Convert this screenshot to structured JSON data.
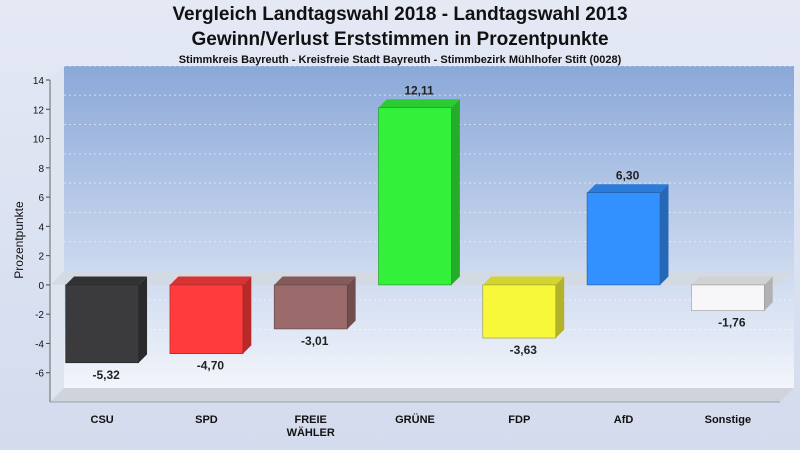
{
  "chart_data": {
    "type": "bar",
    "title": "Vergleich Landtagswahl 2018 - Landtagswahl 2013",
    "subtitle": "Gewinn/Verlust Erststimmen in Prozentpunkte",
    "caption": "Stimmkreis Bayreuth - Kreisfreie Stadt Bayreuth - Stimmbezirk Mühlhofer Stift (0028)",
    "ylabel": "Prozentpunkte",
    "ylim": [
      -8,
      14
    ],
    "yticks": [
      -6,
      -4,
      -2,
      0,
      2,
      4,
      6,
      8,
      10,
      12,
      14
    ],
    "grid": true,
    "categories": [
      "CSU",
      "SPD",
      "FREIE WÄHLER",
      "GRÜNE",
      "FDP",
      "AfD",
      "Sonstige"
    ],
    "category_lines": [
      [
        "CSU"
      ],
      [
        "SPD"
      ],
      [
        "FREIE",
        "WÄHLER"
      ],
      [
        "GRÜNE"
      ],
      [
        "FDP"
      ],
      [
        "AfD"
      ],
      [
        "Sonstige"
      ]
    ],
    "values": [
      -5.32,
      -4.7,
      -3.01,
      12.11,
      -3.63,
      6.3,
      -1.76
    ],
    "value_labels": [
      "-5,32",
      "-4,70",
      "-3,01",
      "12,11",
      "-3,63",
      "6,30",
      "-1,76"
    ],
    "colors": [
      "#3b3b3d",
      "#ff3b3b",
      "#9b6a6a",
      "#33f03a",
      "#f8f83a",
      "#3391ff",
      "#f7f7f9"
    ]
  }
}
